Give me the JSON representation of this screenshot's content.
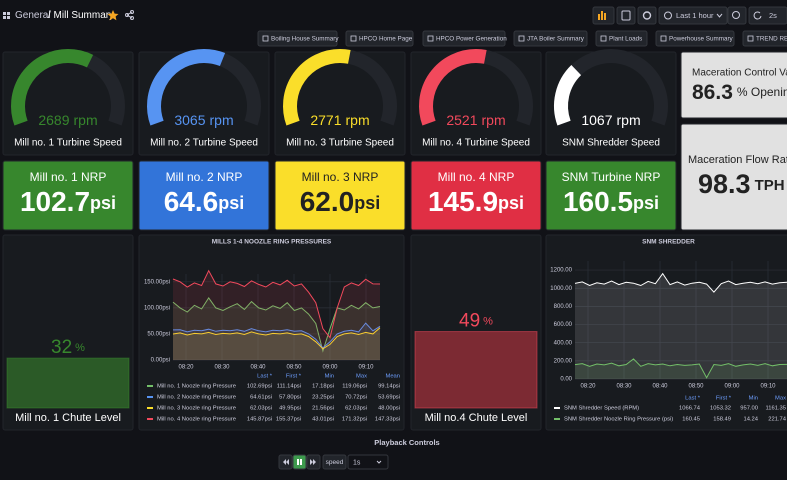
{
  "header": {
    "breadcrumb_root": "General",
    "breadcrumb_page": "/ Mill Summary",
    "time_range": "Last 1 hour",
    "refresh": "2s"
  },
  "links": [
    "Boiling House Summary",
    "HPCO Home Page",
    "HPCO Power Generation",
    "JTA Boiler Summary",
    "Plant Loads",
    "Powerhouse Summary",
    "TREND REV"
  ],
  "gauges": [
    {
      "value": "2689",
      "unit": "rpm",
      "label": "Mill no. 1 Turbine Speed",
      "color": "#37872d"
    },
    {
      "value": "3065",
      "unit": "rpm",
      "label": "Mill no. 2 Turbine Speed",
      "color": "#5794f2"
    },
    {
      "value": "2771",
      "unit": "rpm",
      "label": "Mill no. 3 Turbine Speed",
      "color": "#fade2a"
    },
    {
      "value": "2521",
      "unit": "rpm",
      "label": "Mill no. 4 Turbine Speed",
      "color": "#f2495c"
    },
    {
      "value": "1067",
      "unit": "rpm",
      "label": "SNM Shredder Speed",
      "color": "#ffffff"
    }
  ],
  "maceration": [
    {
      "title": "Maceration Control Valve",
      "value": "86.3",
      "unit": "% Opening"
    },
    {
      "title": "Maceration Flow Rate",
      "value": "98.3",
      "unit": "TPH"
    }
  ],
  "stats": [
    {
      "title": "Mill no. 1 NRP",
      "value": "102.7",
      "unit": "psi",
      "color": "#37872d"
    },
    {
      "title": "Mill no. 2 NRP",
      "value": "64.6",
      "unit": "psi",
      "color": "#3274d9"
    },
    {
      "title": "Mill no. 3 NRP",
      "value": "62.0",
      "unit": "psi",
      "color": "#fade2a"
    },
    {
      "title": "Mill no. 4 NRP",
      "value": "145.9",
      "unit": "psi",
      "color": "#e02f44"
    },
    {
      "title": "SNM Turbine NRP",
      "value": "160.5",
      "unit": "psi",
      "color": "#37872d"
    }
  ],
  "chute_levels": [
    {
      "label": "Mill no. 1 Chute Level",
      "value": 32,
      "unit": "%",
      "color": "#37872d",
      "bar_color": "#2b5a27"
    },
    {
      "label": "Mill no.4 Chute Level",
      "value": 49,
      "unit": "%",
      "color": "#f2495c",
      "bar_color": "#7c2a33"
    }
  ],
  "mills_chart": {
    "title": "MILLS 1-4 NOOZLE RING PRESSURES",
    "x_labels": [
      "08:20",
      "08:30",
      "08:40",
      "08:50",
      "09:00",
      "09:10"
    ],
    "ylim": [
      0,
      165
    ],
    "yticks": [
      {
        "value": 0,
        "label": "0.00psi"
      },
      {
        "value": 50,
        "label": "50.00psi"
      },
      {
        "value": 100,
        "label": "100.00psi"
      },
      {
        "value": 150,
        "label": "150.00psi"
      }
    ],
    "legend_columns": [
      "Last *",
      "First *",
      "Min",
      "Max",
      "Mean"
    ],
    "series": [
      {
        "name": "Mill no. 1 Noozle ring Pressure",
        "color": "#73bf69",
        "values": [
          111.14,
          100,
          92,
          105,
          98,
          119.06,
          100,
          95,
          102,
          108,
          97,
          112,
          100,
          96,
          104,
          99,
          110,
          95,
          100,
          88,
          70,
          17.18,
          60,
          100,
          96,
          105,
          98,
          110,
          100,
          102.69
        ],
        "stats": [
          "102.69psi",
          "111.14psi",
          "17.18psi",
          "119.06psi",
          "99.14psi"
        ]
      },
      {
        "name": "Mill no. 2 Noozle ring Pressure",
        "color": "#5794f2",
        "values": [
          57.8,
          58,
          54,
          57,
          56,
          59,
          55,
          57,
          56,
          58,
          55,
          60,
          56,
          54,
          57,
          56,
          58,
          55,
          56,
          50,
          40,
          23.25,
          35,
          50,
          55,
          57,
          54,
          70.72,
          56,
          64.61
        ],
        "stats": [
          "64.61psi",
          "57.80psi",
          "23.25psi",
          "70.72psi",
          "53.69psi"
        ]
      },
      {
        "name": "Mill no. 3 Noozle ring Pressure",
        "color": "#fade2a",
        "values": [
          49.95,
          52,
          48,
          51,
          50,
          53,
          49,
          51,
          50,
          52,
          49,
          54,
          50,
          48,
          51,
          50,
          52,
          49,
          50,
          45,
          35,
          21.56,
          30,
          45,
          50,
          52,
          49,
          53,
          50,
          62.03
        ],
        "stats": [
          "62.03psi",
          "49.95psi",
          "21.56psi",
          "62.03psi",
          "48.00psi"
        ]
      },
      {
        "name": "Mill no. 4 Noozle ring Pressure",
        "color": "#f2495c",
        "values": [
          155.37,
          150,
          140,
          148,
          143,
          171.32,
          146,
          142,
          150,
          147,
          141,
          152,
          145,
          140,
          149,
          144,
          153,
          142,
          146,
          130,
          110,
          60,
          43.01,
          100,
          140,
          148,
          143,
          155,
          146,
          145.87
        ],
        "stats": [
          "145.87psi",
          "155.37psi",
          "43.01psi",
          "171.32psi",
          "147.33psi"
        ]
      }
    ]
  },
  "snm_chart": {
    "title": "SNM SHREDDER",
    "x_labels": [
      "08:20",
      "08:30",
      "08:40",
      "08:50",
      "09:00",
      "09:10"
    ],
    "ylim": [
      0,
      1300
    ],
    "yticks": [
      {
        "value": 0,
        "label": "0.00"
      },
      {
        "value": 200,
        "label": "200.00"
      },
      {
        "value": 400,
        "label": "400.00"
      },
      {
        "value": 600,
        "label": "600.00"
      },
      {
        "value": 800,
        "label": "800.00"
      },
      {
        "value": 1000,
        "label": "1000.00"
      },
      {
        "value": 1200,
        "label": "1200.00"
      }
    ],
    "legend_columns": [
      "Last *",
      "First *",
      "Min",
      "Max"
    ],
    "series": [
      {
        "name": "SNM Shredder Speed (RPM)",
        "color": "#ffffff",
        "values": [
          1053.32,
          1070,
          1030,
          1060,
          1045,
          1080,
          1040,
          1065,
          1055,
          1030,
          1075,
          1050,
          1161.35,
          1040,
          1070,
          1035,
          1055,
          1065,
          1045,
          957,
          1050,
          1080,
          1040,
          1055,
          1065,
          1050,
          1070,
          1045,
          1060,
          1066.74
        ],
        "stats": [
          "1066.74",
          "1053.32",
          "957.00",
          "1161.35"
        ]
      },
      {
        "name": "SNM Shredder Noozle Ring Pressure (psi)",
        "color": "#73bf69",
        "values": [
          158.49,
          170,
          140,
          165,
          155,
          175,
          145,
          160,
          221.74,
          140,
          170,
          155,
          165,
          145,
          160,
          150,
          155,
          165,
          14.24,
          160,
          150,
          170,
          140,
          155,
          165,
          150,
          170,
          145,
          160,
          160.45
        ],
        "stats": [
          "160.45",
          "158.49",
          "14.24",
          "221.74"
        ]
      }
    ]
  },
  "playback": {
    "title": "Playback Controls",
    "speed_label": "speed",
    "speed": "1s"
  }
}
